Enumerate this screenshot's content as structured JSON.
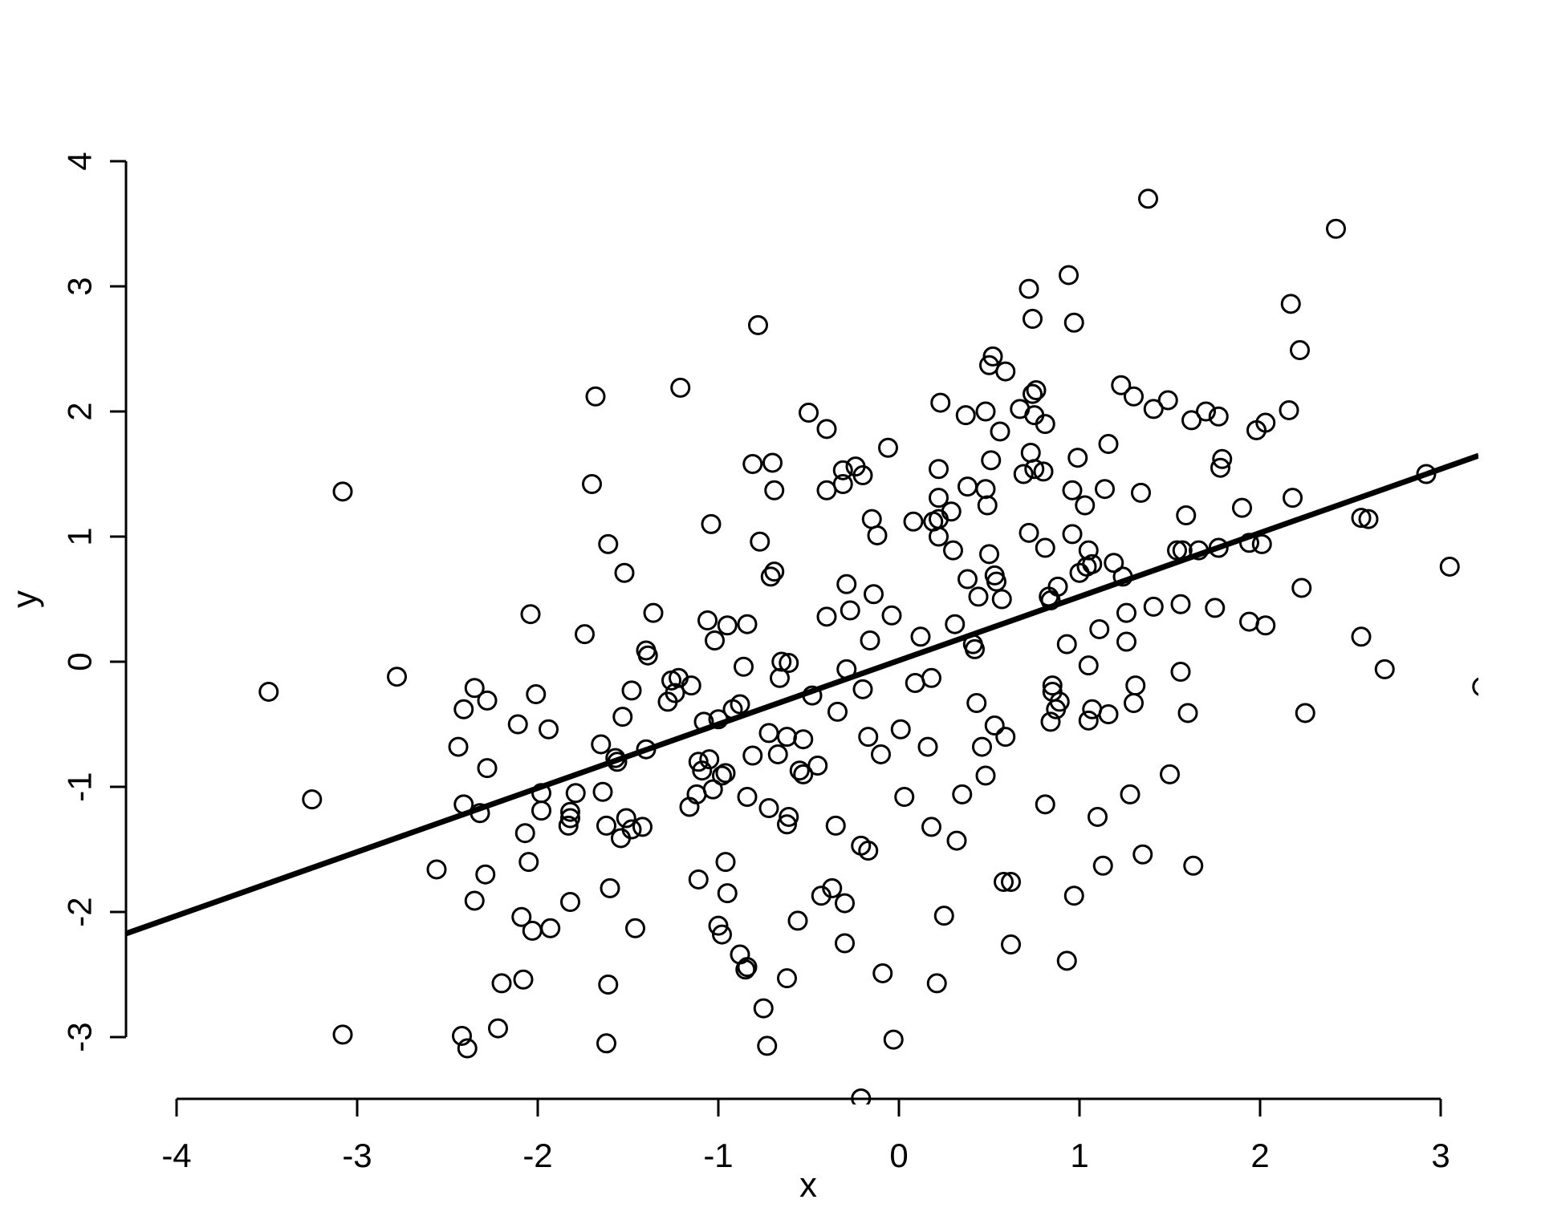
{
  "chart_data": {
    "type": "scatter",
    "title": "",
    "xlabel": "x",
    "ylabel": "y",
    "x_ticks": [
      -4,
      -3,
      -2,
      -1,
      0,
      1,
      2,
      3
    ],
    "y_ticks": [
      -3,
      -2,
      -1,
      0,
      1,
      2,
      3,
      4
    ],
    "xlim": [
      -4.28,
      3.21
    ],
    "ylim": [
      -3.52,
      4.31
    ],
    "grid": false,
    "legend": null,
    "regression_line": {
      "slope": 0.51,
      "intercept": 0.01,
      "color": "#000000"
    },
    "marker": {
      "shape": "open-circle",
      "color": "#000000"
    },
    "points": [
      [
        -0.78,
        2.69
      ],
      [
        -1.68,
        2.12
      ],
      [
        -1.21,
        2.19
      ],
      [
        -0.5,
        1.99
      ],
      [
        1.38,
        3.7
      ],
      [
        0.94,
        3.09
      ],
      [
        0.72,
        2.98
      ],
      [
        0.74,
        2.74
      ],
      [
        0.97,
        2.71
      ],
      [
        0.52,
        2.44
      ],
      [
        0.5,
        2.37
      ],
      [
        0.59,
        2.32
      ],
      [
        0.74,
        2.14
      ],
      [
        0.76,
        2.17
      ],
      [
        0.23,
        2.07
      ],
      [
        0.37,
        1.97
      ],
      [
        0.48,
        2.0
      ],
      [
        0.67,
        2.02
      ],
      [
        0.75,
        1.97
      ],
      [
        0.81,
        1.9
      ],
      [
        0.56,
        1.84
      ],
      [
        1.23,
        2.21
      ],
      [
        1.3,
        2.12
      ],
      [
        1.41,
        2.02
      ],
      [
        -0.4,
        1.86
      ],
      [
        2.42,
        3.46
      ],
      [
        2.17,
        2.86
      ],
      [
        2.22,
        2.49
      ],
      [
        1.49,
        2.09
      ],
      [
        1.7,
        2.0
      ],
      [
        1.62,
        1.93
      ],
      [
        1.77,
        1.96
      ],
      [
        1.98,
        1.85
      ],
      [
        2.03,
        1.91
      ],
      [
        2.16,
        2.01
      ],
      [
        -3.08,
        1.36
      ],
      [
        -3.49,
        -0.24
      ],
      [
        -2.78,
        -0.12
      ],
      [
        -2.41,
        -0.38
      ],
      [
        -2.44,
        -0.68
      ],
      [
        -0.81,
        1.58
      ],
      [
        -0.7,
        1.59
      ],
      [
        -1.7,
        1.42
      ],
      [
        -0.69,
        1.37
      ],
      [
        -1.04,
        1.1
      ],
      [
        -0.77,
        0.96
      ],
      [
        -1.61,
        0.94
      ],
      [
        -1.52,
        0.71
      ],
      [
        -0.71,
        0.68
      ],
      [
        -0.69,
        0.72
      ],
      [
        -2.04,
        0.38
      ],
      [
        -1.36,
        0.39
      ],
      [
        -1.74,
        0.22
      ],
      [
        -1.06,
        0.33
      ],
      [
        -0.95,
        0.29
      ],
      [
        -0.84,
        0.3
      ],
      [
        -1.02,
        0.17
      ],
      [
        -1.4,
        0.09
      ],
      [
        -1.39,
        0.05
      ],
      [
        -0.86,
        -0.04
      ],
      [
        -0.65,
        0.0
      ],
      [
        -0.61,
        -0.01
      ],
      [
        -0.66,
        -0.13
      ],
      [
        -2.35,
        -0.21
      ],
      [
        -2.28,
        -0.31
      ],
      [
        -2.01,
        -0.26
      ],
      [
        -1.48,
        -0.23
      ],
      [
        -1.26,
        -0.15
      ],
      [
        -1.22,
        -0.13
      ],
      [
        -1.24,
        -0.25
      ],
      [
        -1.28,
        -0.32
      ],
      [
        -1.15,
        -0.19
      ],
      [
        -1.53,
        -0.44
      ],
      [
        -2.11,
        -0.5
      ],
      [
        -1.94,
        -0.54
      ],
      [
        -1.08,
        -0.48
      ],
      [
        -1.0,
        -0.46
      ],
      [
        -0.92,
        -0.38
      ],
      [
        -0.88,
        -0.34
      ],
      [
        -0.72,
        -0.57
      ],
      [
        -0.62,
        -0.6
      ],
      [
        -0.53,
        -0.62
      ],
      [
        -0.48,
        -0.27
      ],
      [
        -1.65,
        -0.66
      ],
      [
        -0.06,
        1.71
      ],
      [
        1.16,
        1.74
      ],
      [
        0.73,
        1.67
      ],
      [
        0.75,
        1.54
      ],
      [
        0.69,
        1.5
      ],
      [
        0.8,
        1.52
      ],
      [
        0.51,
        1.61
      ],
      [
        0.99,
        1.63
      ],
      [
        1.14,
        1.38
      ],
      [
        1.34,
        1.35
      ],
      [
        0.96,
        1.37
      ],
      [
        1.03,
        1.25
      ],
      [
        -0.31,
        1.53
      ],
      [
        -0.24,
        1.56
      ],
      [
        -0.31,
        1.42
      ],
      [
        -0.4,
        1.37
      ],
      [
        -0.2,
        1.49
      ],
      [
        0.22,
        1.54
      ],
      [
        0.22,
        1.31
      ],
      [
        0.38,
        1.4
      ],
      [
        0.48,
        1.38
      ],
      [
        0.49,
        1.25
      ],
      [
        0.29,
        1.2
      ],
      [
        -0.15,
        1.14
      ],
      [
        -0.12,
        1.01
      ],
      [
        0.08,
        1.12
      ],
      [
        0.19,
        1.12
      ],
      [
        0.22,
        1.14
      ],
      [
        0.22,
        1.0
      ],
      [
        0.3,
        0.89
      ],
      [
        0.5,
        0.86
      ],
      [
        0.72,
        1.03
      ],
      [
        0.81,
        0.91
      ],
      [
        0.96,
        1.02
      ],
      [
        1.05,
        0.89
      ],
      [
        1.07,
        0.78
      ],
      [
        1.19,
        0.79
      ],
      [
        1.24,
        0.68
      ],
      [
        1.0,
        0.71
      ],
      [
        1.04,
        0.76
      ],
      [
        0.38,
        0.66
      ],
      [
        0.53,
        0.69
      ],
      [
        0.54,
        0.64
      ],
      [
        0.44,
        0.52
      ],
      [
        0.57,
        0.5
      ],
      [
        0.83,
        0.52
      ],
      [
        0.84,
        0.49
      ],
      [
        0.88,
        0.6
      ],
      [
        -0.29,
        0.62
      ],
      [
        -0.14,
        0.54
      ],
      [
        -0.4,
        0.36
      ],
      [
        -0.27,
        0.41
      ],
      [
        -0.04,
        0.37
      ],
      [
        -0.16,
        0.17
      ],
      [
        0.12,
        0.2
      ],
      [
        0.31,
        0.3
      ],
      [
        0.41,
        0.14
      ],
      [
        0.42,
        0.1
      ],
      [
        0.93,
        0.14
      ],
      [
        1.11,
        0.26
      ],
      [
        1.26,
        0.39
      ],
      [
        1.26,
        0.16
      ],
      [
        1.41,
        0.44
      ],
      [
        -0.29,
        -0.06
      ],
      [
        -0.34,
        -0.4
      ],
      [
        -0.2,
        -0.22
      ],
      [
        0.09,
        -0.17
      ],
      [
        0.18,
        -0.13
      ],
      [
        0.43,
        -0.33
      ],
      [
        0.85,
        -0.19
      ],
      [
        0.85,
        -0.24
      ],
      [
        0.89,
        -0.32
      ],
      [
        0.87,
        -0.38
      ],
      [
        0.84,
        -0.48
      ],
      [
        1.07,
        -0.38
      ],
      [
        1.05,
        -0.47
      ],
      [
        1.16,
        -0.42
      ],
      [
        1.3,
        -0.33
      ],
      [
        1.31,
        -0.19
      ],
      [
        1.05,
        -0.03
      ],
      [
        0.01,
        -0.54
      ],
      [
        -0.17,
        -0.6
      ],
      [
        0.53,
        -0.51
      ],
      [
        0.59,
        -0.6
      ],
      [
        0.16,
        -0.68
      ],
      [
        0.46,
        -0.68
      ],
      [
        1.79,
        1.62
      ],
      [
        1.78,
        1.55
      ],
      [
        2.18,
        1.31
      ],
      [
        1.9,
        1.23
      ],
      [
        1.59,
        1.17
      ],
      [
        2.92,
        1.5
      ],
      [
        2.56,
        1.15
      ],
      [
        2.6,
        1.14
      ],
      [
        1.54,
        0.89
      ],
      [
        1.57,
        0.89
      ],
      [
        1.66,
        0.89
      ],
      [
        1.77,
        0.91
      ],
      [
        1.94,
        0.95
      ],
      [
        2.01,
        0.94
      ],
      [
        3.05,
        0.76
      ],
      [
        2.23,
        0.59
      ],
      [
        1.56,
        0.46
      ],
      [
        1.75,
        0.43
      ],
      [
        1.94,
        0.32
      ],
      [
        2.03,
        0.29
      ],
      [
        2.56,
        0.2
      ],
      [
        2.69,
        -0.06
      ],
      [
        1.56,
        -0.08
      ],
      [
        3.23,
        -0.2
      ],
      [
        1.6,
        -0.41
      ],
      [
        2.25,
        -0.41
      ],
      [
        -3.25,
        -1.1
      ],
      [
        -3.08,
        -2.98
      ],
      [
        -2.56,
        -1.66
      ],
      [
        -2.28,
        -0.85
      ],
      [
        -2.32,
        -1.21
      ],
      [
        -2.41,
        -1.14
      ],
      [
        -1.98,
        -1.05
      ],
      [
        -1.98,
        -1.19
      ],
      [
        -1.79,
        -1.05
      ],
      [
        -1.64,
        -1.04
      ],
      [
        -1.4,
        -0.7
      ],
      [
        -1.57,
        -0.77
      ],
      [
        -1.56,
        -0.8
      ],
      [
        -2.07,
        -1.37
      ],
      [
        -1.82,
        -1.2
      ],
      [
        -1.82,
        -1.25
      ],
      [
        -1.83,
        -1.31
      ],
      [
        -1.62,
        -1.31
      ],
      [
        -1.54,
        -1.41
      ],
      [
        -1.51,
        -1.25
      ],
      [
        -1.48,
        -1.34
      ],
      [
        -1.42,
        -1.32
      ],
      [
        -2.05,
        -1.6
      ],
      [
        -2.29,
        -1.7
      ],
      [
        -2.35,
        -1.91
      ],
      [
        -1.6,
        -1.81
      ],
      [
        -1.82,
        -1.92
      ],
      [
        -2.09,
        -2.04
      ],
      [
        -2.03,
        -2.15
      ],
      [
        -1.93,
        -2.13
      ],
      [
        -1.46,
        -2.13
      ],
      [
        -2.2,
        -2.57
      ],
      [
        -2.08,
        -2.54
      ],
      [
        -1.61,
        -2.58
      ],
      [
        -2.22,
        -2.93
      ],
      [
        -2.42,
        -2.99
      ],
      [
        -1.62,
        -3.05
      ],
      [
        -1.11,
        -0.8
      ],
      [
        -1.05,
        -0.78
      ],
      [
        -1.09,
        -0.87
      ],
      [
        -0.98,
        -0.91
      ],
      [
        -0.96,
        -0.89
      ],
      [
        -1.12,
        -1.06
      ],
      [
        -1.03,
        -1.02
      ],
      [
        -1.16,
        -1.16
      ],
      [
        -0.84,
        -1.08
      ],
      [
        -0.72,
        -1.17
      ],
      [
        -0.61,
        -1.24
      ],
      [
        -0.62,
        -1.3
      ],
      [
        -0.55,
        -0.87
      ],
      [
        -0.53,
        -0.9
      ],
      [
        -0.81,
        -0.75
      ],
      [
        -0.67,
        -0.74
      ],
      [
        -0.96,
        -1.6
      ],
      [
        -1.11,
        -1.74
      ],
      [
        -0.95,
        -1.85
      ],
      [
        -1.0,
        -2.11
      ],
      [
        -0.98,
        -2.18
      ],
      [
        -0.88,
        -2.34
      ],
      [
        -0.84,
        -2.44
      ],
      [
        -0.85,
        -2.46
      ],
      [
        -0.62,
        -2.53
      ],
      [
        -0.56,
        -2.07
      ],
      [
        -0.75,
        -2.77
      ],
      [
        -0.73,
        -3.07
      ],
      [
        -0.45,
        -0.83
      ],
      [
        -0.1,
        -0.74
      ],
      [
        0.48,
        -0.91
      ],
      [
        0.03,
        -1.08
      ],
      [
        0.35,
        -1.06
      ],
      [
        -0.35,
        -1.31
      ],
      [
        0.18,
        -1.32
      ],
      [
        0.32,
        -1.43
      ],
      [
        -0.21,
        -1.47
      ],
      [
        -0.17,
        -1.51
      ],
      [
        0.81,
        -1.14
      ],
      [
        1.1,
        -1.24
      ],
      [
        1.28,
        -1.06
      ],
      [
        1.35,
        -1.54
      ],
      [
        1.13,
        -1.63
      ],
      [
        0.58,
        -1.76
      ],
      [
        0.62,
        -1.76
      ],
      [
        0.97,
        -1.87
      ],
      [
        -0.37,
        -1.81
      ],
      [
        -0.43,
        -1.87
      ],
      [
        -0.3,
        -1.93
      ],
      [
        0.25,
        -2.03
      ],
      [
        0.62,
        -2.26
      ],
      [
        0.93,
        -2.39
      ],
      [
        -0.3,
        -2.25
      ],
      [
        -0.09,
        -2.49
      ],
      [
        0.21,
        -2.57
      ],
      [
        -0.03,
        -3.02
      ],
      [
        -0.21,
        -3.49
      ],
      [
        1.5,
        -0.9
      ],
      [
        1.63,
        -1.63
      ],
      [
        -2.39,
        -3.09
      ]
    ]
  },
  "colors": {
    "background": "#ffffff",
    "foreground": "#000000"
  }
}
